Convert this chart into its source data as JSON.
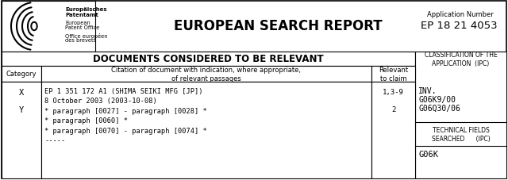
{
  "bg_color": "#ffffff",
  "title": "EUROPEAN SEARCH REPORT",
  "app_number_label": "Application Number",
  "app_number": "EP 18 21 4053",
  "header_section": "DOCUMENTS CONSIDERED TO BE RELEVANT",
  "col_headers": [
    "Category",
    "Citation of document with indication, where appropriate,\nof relevant passages",
    "Relevant\nto claim",
    "CLASSIFICATION OF THE\nAPPLICATION  (IPC)"
  ],
  "cat_x": "X",
  "cat_y": "Y",
  "citation_line1": "EP 1 351 172 A1 (SHIMA SEIKI MFG [JP])",
  "citation_line2": "8 October 2003 (2003-10-08)",
  "citation_line3": "* paragraph [0027] - paragraph [0028] *",
  "citation_line4": "* paragraph [0060] *",
  "citation_line5": "* paragraph [0070] - paragraph [0074] *",
  "citation_dashes": "-----",
  "claim_x": "1,3-9",
  "claim_y": "2",
  "inv_label": "INV.",
  "ipc1": "G06K9/00",
  "ipc2": "G06Q30/06",
  "tech_fields": "TECHNICAL FIELDS\nSEARCHED      (IPC)",
  "tech_ipc": "G06K",
  "epo_line1": "Europäisches",
  "epo_line2": "Patentamt",
  "epo_line3": "European",
  "epo_line4": "Patent Office",
  "epo_line5": "Office européen",
  "epo_line6": "des brevets",
  "fig_w": 6.4,
  "fig_h": 2.28,
  "dpi": 100
}
